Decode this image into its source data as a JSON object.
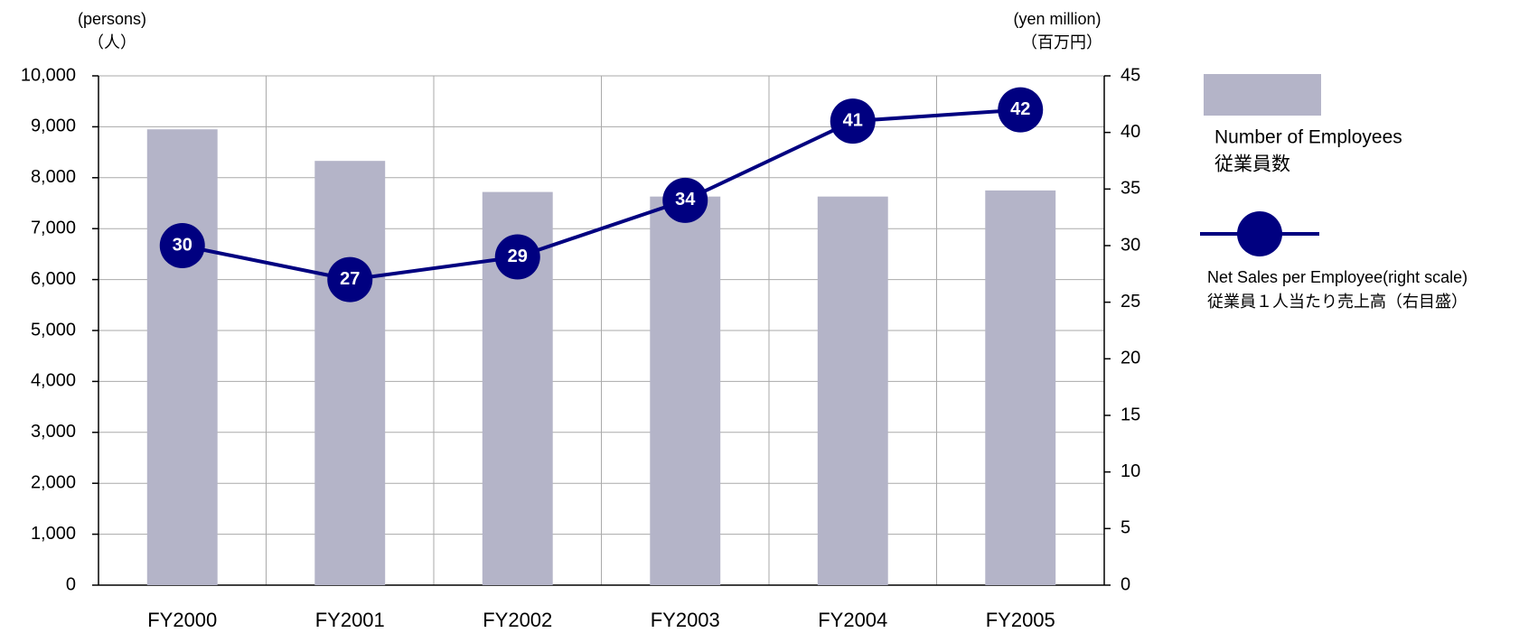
{
  "chart_data": {
    "type": "bar_line",
    "y_axis_label": "(persons)",
    "y_axis_label_ja": "（人）",
    "y2_axis_label": "(yen million)",
    "y2_axis_label_ja": "（百万円）",
    "categories": [
      "FY2000",
      "FY2001",
      "FY2002",
      "FY2003",
      "FY2004",
      "FY2005"
    ],
    "series": [
      {
        "name": "Number of Employees",
        "name_ja": "従業員数",
        "type": "bar",
        "color": "#b4b4c8",
        "values": [
          8950,
          8330,
          7720,
          7630,
          7630,
          7750
        ]
      },
      {
        "name": "Net Sales per Employee(right scale)",
        "name_ja": "従業員１人当たり売上高（右目盛）",
        "type": "line",
        "axis": "y2",
        "color": "#000080",
        "values": [
          30,
          27,
          29,
          34,
          41,
          42
        ]
      }
    ],
    "ylim": [
      0,
      10000
    ],
    "yticks": [
      0,
      {
        "value": 1000,
        "label": "1,000"
      },
      {
        "value": 2000,
        "label": "2,000"
      },
      {
        "value": 3000,
        "label": "3,000"
      },
      {
        "value": 4000,
        "label": "4,000"
      },
      {
        "value": 5000,
        "label": "5,000"
      },
      {
        "value": 6000,
        "label": "6,000"
      },
      {
        "value": 7000,
        "label": "7,000"
      },
      {
        "value": 8000,
        "label": "8,000"
      },
      {
        "value": 9000,
        "label": "9,000"
      },
      {
        "value": 10000,
        "label": "10,000"
      }
    ],
    "y2lim": [
      0,
      45
    ],
    "y2ticks": [
      0,
      5,
      10,
      15,
      20,
      25,
      30,
      35,
      40,
      45
    ],
    "grid": true,
    "legend": "right"
  }
}
